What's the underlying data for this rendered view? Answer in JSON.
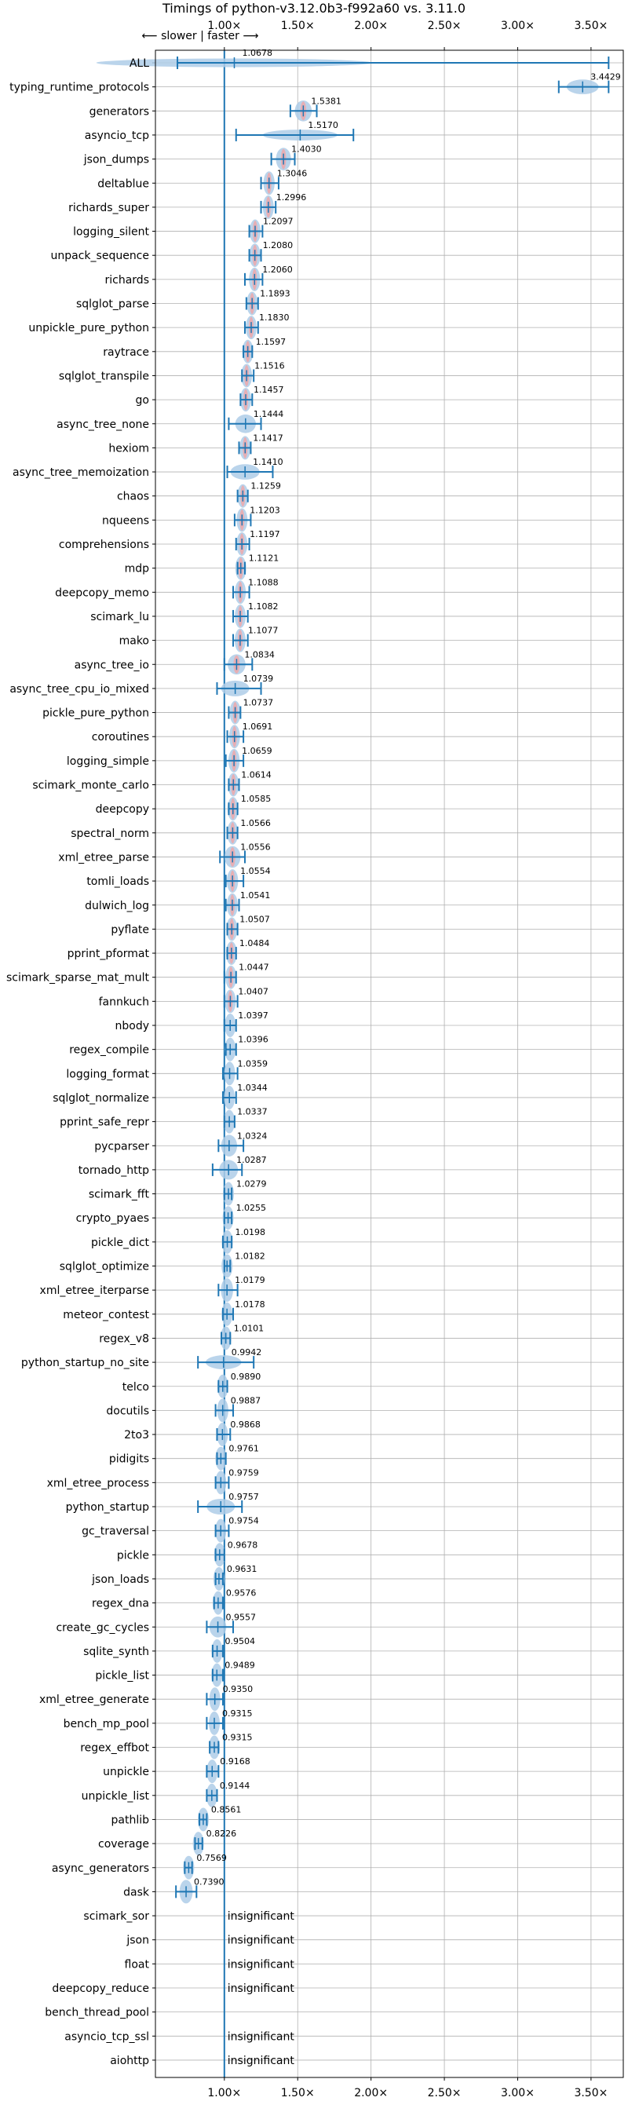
{
  "chart_data": {
    "type": "violin",
    "title": "Timings of python-v3.12.0b3-f992a60 vs. 3.11.0",
    "direction_label": "⟵ slower | faster ⟶",
    "xlim": [
      0.53,
      3.72
    ],
    "x_ticks": [
      {
        "value": 1.0,
        "label": "1.00×"
      },
      {
        "value": 1.5,
        "label": "1.50×"
      },
      {
        "value": 2.0,
        "label": "2.00×"
      },
      {
        "value": 2.5,
        "label": "2.50×"
      },
      {
        "value": 3.0,
        "label": "3.00×"
      },
      {
        "value": 3.5,
        "label": "3.50×"
      }
    ],
    "reference_line": 1.0,
    "grid": true,
    "insignificant_label": "insignificant",
    "benchmarks": [
      {
        "name": "ALL",
        "value": 1.0678,
        "label": "1.0678",
        "min": 0.68,
        "max": 3.62
      },
      {
        "name": "typing_runtime_protocols",
        "value": 3.4429,
        "label": "3.4429",
        "min": 3.28,
        "max": 3.62
      },
      {
        "name": "generators",
        "value": 1.5381,
        "label": "1.5381",
        "min": 1.45,
        "max": 1.63
      },
      {
        "name": "asyncio_tcp",
        "value": 1.517,
        "label": "1.5170",
        "min": 1.08,
        "max": 1.88
      },
      {
        "name": "json_dumps",
        "value": 1.403,
        "label": "1.4030",
        "min": 1.32,
        "max": 1.48
      },
      {
        "name": "deltablue",
        "value": 1.3046,
        "label": "1.3046",
        "min": 1.25,
        "max": 1.37
      },
      {
        "name": "richards_super",
        "value": 1.2996,
        "label": "1.2996",
        "min": 1.25,
        "max": 1.35
      },
      {
        "name": "logging_silent",
        "value": 1.2097,
        "label": "1.2097",
        "min": 1.17,
        "max": 1.26
      },
      {
        "name": "unpack_sequence",
        "value": 1.208,
        "label": "1.2080",
        "min": 1.17,
        "max": 1.25
      },
      {
        "name": "richards",
        "value": 1.206,
        "label": "1.2060",
        "min": 1.14,
        "max": 1.26
      },
      {
        "name": "sqlglot_parse",
        "value": 1.1893,
        "label": "1.1893",
        "min": 1.15,
        "max": 1.23
      },
      {
        "name": "unpickle_pure_python",
        "value": 1.183,
        "label": "1.1830",
        "min": 1.14,
        "max": 1.23
      },
      {
        "name": "raytrace",
        "value": 1.1597,
        "label": "1.1597",
        "min": 1.13,
        "max": 1.19
      },
      {
        "name": "sqlglot_transpile",
        "value": 1.1516,
        "label": "1.1516",
        "min": 1.12,
        "max": 1.2
      },
      {
        "name": "go",
        "value": 1.1457,
        "label": "1.1457",
        "min": 1.11,
        "max": 1.19
      },
      {
        "name": "async_tree_none",
        "value": 1.1444,
        "label": "1.1444",
        "min": 1.03,
        "max": 1.25
      },
      {
        "name": "hexiom",
        "value": 1.1417,
        "label": "1.1417",
        "min": 1.1,
        "max": 1.18
      },
      {
        "name": "async_tree_memoization",
        "value": 1.141,
        "label": "1.1410",
        "min": 1.02,
        "max": 1.33
      },
      {
        "name": "chaos",
        "value": 1.1259,
        "label": "1.1259",
        "min": 1.09,
        "max": 1.16
      },
      {
        "name": "nqueens",
        "value": 1.1203,
        "label": "1.1203",
        "min": 1.07,
        "max": 1.18
      },
      {
        "name": "comprehensions",
        "value": 1.1197,
        "label": "1.1197",
        "min": 1.08,
        "max": 1.17
      },
      {
        "name": "mdp",
        "value": 1.1121,
        "label": "1.1121",
        "min": 1.09,
        "max": 1.14
      },
      {
        "name": "deepcopy_memo",
        "value": 1.1088,
        "label": "1.1088",
        "min": 1.06,
        "max": 1.17
      },
      {
        "name": "scimark_lu",
        "value": 1.1082,
        "label": "1.1082",
        "min": 1.06,
        "max": 1.16
      },
      {
        "name": "mako",
        "value": 1.1077,
        "label": "1.1077",
        "min": 1.06,
        "max": 1.16
      },
      {
        "name": "async_tree_io",
        "value": 1.0834,
        "label": "1.0834",
        "min": 1.0,
        "max": 1.19
      },
      {
        "name": "async_tree_cpu_io_mixed",
        "value": 1.0739,
        "label": "1.0739",
        "min": 0.95,
        "max": 1.25
      },
      {
        "name": "pickle_pure_python",
        "value": 1.0737,
        "label": "1.0737",
        "min": 1.03,
        "max": 1.11
      },
      {
        "name": "coroutines",
        "value": 1.0691,
        "label": "1.0691",
        "min": 1.02,
        "max": 1.13
      },
      {
        "name": "logging_simple",
        "value": 1.0659,
        "label": "1.0659",
        "min": 1.01,
        "max": 1.13
      },
      {
        "name": "scimark_monte_carlo",
        "value": 1.0614,
        "label": "1.0614",
        "min": 1.03,
        "max": 1.1
      },
      {
        "name": "deepcopy",
        "value": 1.0585,
        "label": "1.0585",
        "min": 1.03,
        "max": 1.09
      },
      {
        "name": "spectral_norm",
        "value": 1.0566,
        "label": "1.0566",
        "min": 1.02,
        "max": 1.09
      },
      {
        "name": "xml_etree_parse",
        "value": 1.0556,
        "label": "1.0556",
        "min": 0.97,
        "max": 1.14
      },
      {
        "name": "tomli_loads",
        "value": 1.0554,
        "label": "1.0554",
        "min": 1.01,
        "max": 1.13
      },
      {
        "name": "dulwich_log",
        "value": 1.0541,
        "label": "1.0541",
        "min": 1.01,
        "max": 1.1
      },
      {
        "name": "pyflate",
        "value": 1.0507,
        "label": "1.0507",
        "min": 1.02,
        "max": 1.09
      },
      {
        "name": "pprint_pformat",
        "value": 1.0484,
        "label": "1.0484",
        "min": 1.02,
        "max": 1.08
      },
      {
        "name": "scimark_sparse_mat_mult",
        "value": 1.0447,
        "label": "1.0447",
        "min": 1.0,
        "max": 1.08
      },
      {
        "name": "fannkuch",
        "value": 1.0407,
        "label": "1.0407",
        "min": 1.0,
        "max": 1.09
      },
      {
        "name": "nbody",
        "value": 1.0397,
        "label": "1.0397",
        "min": 1.0,
        "max": 1.08
      },
      {
        "name": "regex_compile",
        "value": 1.0396,
        "label": "1.0396",
        "min": 1.01,
        "max": 1.08
      },
      {
        "name": "logging_format",
        "value": 1.0359,
        "label": "1.0359",
        "min": 0.99,
        "max": 1.09
      },
      {
        "name": "sqlglot_normalize",
        "value": 1.0344,
        "label": "1.0344",
        "min": 0.99,
        "max": 1.08
      },
      {
        "name": "pprint_safe_repr",
        "value": 1.0337,
        "label": "1.0337",
        "min": 1.0,
        "max": 1.07
      },
      {
        "name": "pycparser",
        "value": 1.0324,
        "label": "1.0324",
        "min": 0.96,
        "max": 1.13
      },
      {
        "name": "tornado_http",
        "value": 1.0287,
        "label": "1.0287",
        "min": 0.92,
        "max": 1.12
      },
      {
        "name": "scimark_fft",
        "value": 1.0279,
        "label": "1.0279",
        "min": 1.0,
        "max": 1.05
      },
      {
        "name": "crypto_pyaes",
        "value": 1.0255,
        "label": "1.0255",
        "min": 1.0,
        "max": 1.05
      },
      {
        "name": "pickle_dict",
        "value": 1.0198,
        "label": "1.0198",
        "min": 0.99,
        "max": 1.05
      },
      {
        "name": "sqlglot_optimize",
        "value": 1.0182,
        "label": "1.0182",
        "min": 1.0,
        "max": 1.04
      },
      {
        "name": "xml_etree_iterparse",
        "value": 1.0179,
        "label": "1.0179",
        "min": 0.96,
        "max": 1.09
      },
      {
        "name": "meteor_contest",
        "value": 1.0178,
        "label": "1.0178",
        "min": 0.99,
        "max": 1.06
      },
      {
        "name": "regex_v8",
        "value": 1.0101,
        "label": "1.0101",
        "min": 0.98,
        "max": 1.04
      },
      {
        "name": "python_startup_no_site",
        "value": 0.9942,
        "label": "0.9942",
        "min": 0.82,
        "max": 1.2
      },
      {
        "name": "telco",
        "value": 0.989,
        "label": "0.9890",
        "min": 0.96,
        "max": 1.02
      },
      {
        "name": "docutils",
        "value": 0.9887,
        "label": "0.9887",
        "min": 0.94,
        "max": 1.06
      },
      {
        "name": "2to3",
        "value": 0.9868,
        "label": "0.9868",
        "min": 0.95,
        "max": 1.04
      },
      {
        "name": "pidigits",
        "value": 0.9761,
        "label": "0.9761",
        "min": 0.95,
        "max": 1.01
      },
      {
        "name": "xml_etree_process",
        "value": 0.9759,
        "label": "0.9759",
        "min": 0.94,
        "max": 1.03
      },
      {
        "name": "python_startup",
        "value": 0.9757,
        "label": "0.9757",
        "min": 0.82,
        "max": 1.12
      },
      {
        "name": "gc_traversal",
        "value": 0.9754,
        "label": "0.9754",
        "min": 0.94,
        "max": 1.03
      },
      {
        "name": "pickle",
        "value": 0.9678,
        "label": "0.9678",
        "min": 0.94,
        "max": 1.0
      },
      {
        "name": "json_loads",
        "value": 0.9631,
        "label": "0.9631",
        "min": 0.94,
        "max": 0.99
      },
      {
        "name": "regex_dna",
        "value": 0.9576,
        "label": "0.9576",
        "min": 0.93,
        "max": 0.99
      },
      {
        "name": "create_gc_cycles",
        "value": 0.9557,
        "label": "0.9557",
        "min": 0.88,
        "max": 1.06
      },
      {
        "name": "sqlite_synth",
        "value": 0.9504,
        "label": "0.9504",
        "min": 0.92,
        "max": 0.99
      },
      {
        "name": "pickle_list",
        "value": 0.9489,
        "label": "0.9489",
        "min": 0.92,
        "max": 0.99
      },
      {
        "name": "xml_etree_generate",
        "value": 0.935,
        "label": "0.9350",
        "min": 0.88,
        "max": 0.99
      },
      {
        "name": "bench_mp_pool",
        "value": 0.9315,
        "label": "0.9315",
        "min": 0.88,
        "max": 0.99
      },
      {
        "name": "regex_effbot",
        "value": 0.9315,
        "label": "0.9315",
        "min": 0.9,
        "max": 0.96
      },
      {
        "name": "unpickle",
        "value": 0.9168,
        "label": "0.9168",
        "min": 0.88,
        "max": 0.96
      },
      {
        "name": "unpickle_list",
        "value": 0.9144,
        "label": "0.9144",
        "min": 0.88,
        "max": 0.95
      },
      {
        "name": "pathlib",
        "value": 0.8561,
        "label": "0.8561",
        "min": 0.83,
        "max": 0.88
      },
      {
        "name": "coverage",
        "value": 0.8226,
        "label": "0.8226",
        "min": 0.8,
        "max": 0.85
      },
      {
        "name": "async_generators",
        "value": 0.7569,
        "label": "0.7569",
        "min": 0.73,
        "max": 0.78
      },
      {
        "name": "dask",
        "value": 0.739,
        "label": "0.7390",
        "min": 0.67,
        "max": 0.81
      },
      {
        "name": "scimark_sor",
        "value": null,
        "label": "insignificant"
      },
      {
        "name": "json",
        "value": null,
        "label": "insignificant"
      },
      {
        "name": "float",
        "value": null,
        "label": "insignificant"
      },
      {
        "name": "deepcopy_reduce",
        "value": null,
        "label": "insignificant"
      },
      {
        "name": "bench_thread_pool",
        "value": null,
        "label": ""
      },
      {
        "name": "asyncio_tcp_ssl",
        "value": null,
        "label": "insignificant"
      },
      {
        "name": "aiohttp",
        "value": null,
        "label": "insignificant"
      }
    ],
    "colors": {
      "violin": "#aecde8",
      "line": "#1f77b4",
      "highlight": "#f4a3a3",
      "grid": "#b0b0b0",
      "text": "#000000"
    }
  }
}
